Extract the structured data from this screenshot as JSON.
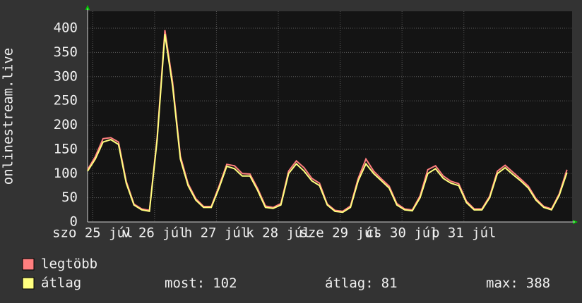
{
  "chart_data": {
    "type": "line",
    "ylabel": "onlinestream.live",
    "x": [
      -2,
      1,
      4,
      7,
      10,
      13,
      16,
      19,
      22,
      25,
      28,
      31,
      34,
      37,
      40,
      43,
      46,
      49,
      52,
      55,
      58,
      61,
      64,
      67,
      70,
      73,
      76,
      79,
      82,
      85,
      88,
      91,
      94,
      97,
      100,
      103,
      106,
      109,
      112,
      115,
      118,
      121,
      124,
      127,
      130,
      133,
      136,
      139,
      142,
      145,
      148,
      151,
      154,
      157,
      160,
      163,
      166,
      169,
      172,
      175,
      178,
      181,
      184
    ],
    "series": [
      {
        "name": "legtöbb",
        "color": "#ff7f7f",
        "values": [
          108,
          135,
          172,
          174,
          165,
          84,
          37,
          27,
          24,
          175,
          396,
          288,
          136,
          79,
          48,
          32,
          32,
          74,
          119,
          116,
          100,
          99,
          69,
          33,
          30,
          38,
          105,
          126,
          112,
          90,
          80,
          37,
          24,
          22,
          33,
          90,
          130,
          105,
          89,
          74,
          38,
          27,
          25,
          54,
          108,
          116,
          95,
          84,
          79,
          43,
          27,
          27,
          53,
          105,
          117,
          103,
          89,
          74,
          48,
          32,
          27,
          58,
          108
        ]
      },
      {
        "name": "átlag",
        "color": "#ffff7f",
        "values": [
          105,
          130,
          165,
          170,
          160,
          80,
          35,
          25,
          22,
          170,
          388,
          280,
          130,
          75,
          45,
          30,
          30,
          70,
          115,
          110,
          95,
          95,
          65,
          30,
          28,
          35,
          100,
          120,
          105,
          85,
          75,
          35,
          22,
          20,
          30,
          85,
          120,
          100,
          85,
          70,
          35,
          25,
          23,
          50,
          100,
          110,
          90,
          80,
          75,
          40,
          25,
          25,
          50,
          100,
          112,
          98,
          85,
          70,
          45,
          30,
          25,
          55,
          102
        ]
      }
    ],
    "xlim": [
      -2,
      186
    ],
    "xticks": [
      {
        "value": 0,
        "label": "szo 25 júl"
      },
      {
        "value": 24,
        "label": "v 26 júl"
      },
      {
        "value": 48,
        "label": "h 27 júl"
      },
      {
        "value": 72,
        "label": "k 28 júl"
      },
      {
        "value": 96,
        "label": "sze 29 júl"
      },
      {
        "value": 120,
        "label": "cs 30 júl"
      },
      {
        "value": 144,
        "label": "p 31 júl"
      }
    ],
    "ylim": [
      0,
      435
    ],
    "yticks": [
      0,
      50,
      100,
      150,
      200,
      250,
      300,
      350,
      400
    ],
    "grid": true,
    "stats": [
      {
        "label": "most:",
        "value": 102
      },
      {
        "label": "átlag:",
        "value": 81
      },
      {
        "label": "max:",
        "value": 388
      }
    ]
  }
}
